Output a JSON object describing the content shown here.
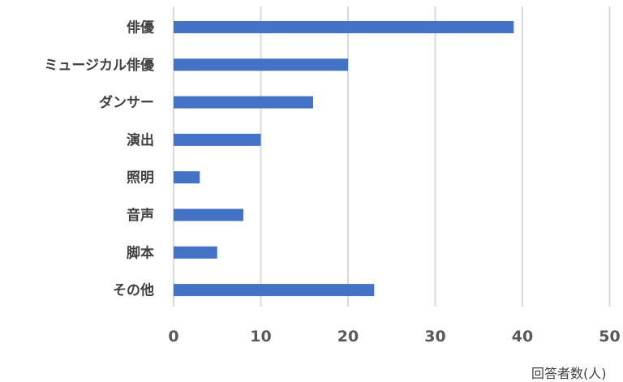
{
  "chart_data": {
    "type": "bar",
    "orientation": "horizontal",
    "categories": [
      "俳優",
      "ミュージカル俳優",
      "ダンサー",
      "演出",
      "照明",
      "音声",
      "脚本",
      "その他"
    ],
    "values": [
      39,
      20,
      16,
      10,
      3,
      8,
      5,
      23
    ],
    "xlabel": "回答者数(人)",
    "ylabel": "",
    "xlim": [
      0,
      50
    ],
    "xticks": [
      0,
      10,
      20,
      30,
      40,
      50
    ],
    "tick_labels": [
      "0",
      "10",
      "20",
      "30",
      "40",
      "50"
    ],
    "grid": "vertical",
    "legend": "none",
    "bar_color": "#4472c4"
  }
}
